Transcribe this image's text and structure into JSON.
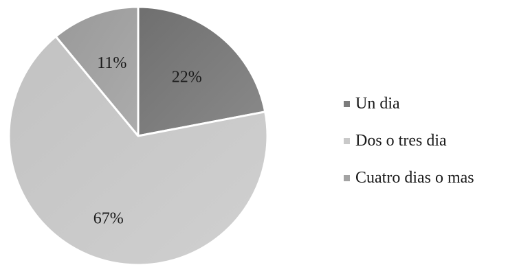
{
  "chart_data": {
    "type": "pie",
    "categories": [
      "Un dia",
      "Dos o tres dia",
      "Cuatro dias o mas"
    ],
    "values": [
      22,
      67,
      11
    ],
    "data_labels": [
      "22%",
      "67%",
      "11%"
    ],
    "colors": [
      "#7c7c7c",
      "#c9c9c9",
      "#a3a3a3"
    ],
    "legend": {
      "placement": "right",
      "entries": [
        " Un dia",
        "Dos o tres dia",
        "Cuatro dias o mas"
      ]
    },
    "start_angle_deg": 0,
    "direction": "clockwise"
  }
}
